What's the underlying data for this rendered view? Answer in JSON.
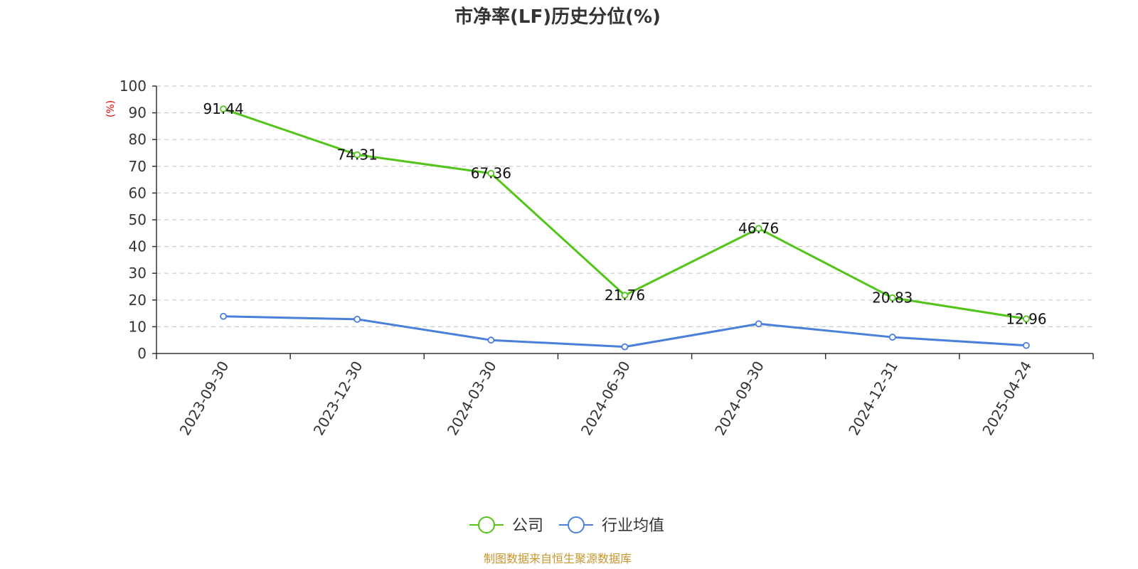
{
  "chart_data": {
    "type": "line",
    "title": "市净率(LF)历史分位(%)",
    "y_unit": "(%)",
    "categories": [
      "2023-09-30",
      "2023-12-30",
      "2024-03-30",
      "2024-06-30",
      "2024-09-30",
      "2024-12-31",
      "2025-04-24"
    ],
    "ylim": [
      0,
      100
    ],
    "yticks": [
      0,
      10,
      20,
      30,
      40,
      50,
      60,
      70,
      80,
      90,
      100
    ],
    "grid": true,
    "legend_position": "bottom-center",
    "series": [
      {
        "name": "公司",
        "color": "#52c41a",
        "values": [
          91.44,
          74.31,
          67.36,
          21.76,
          46.76,
          20.83,
          12.96
        ],
        "labels": [
          "91.44",
          "74.31",
          "67.36",
          "21.76",
          "46.76",
          "20.83",
          "12.96"
        ]
      },
      {
        "name": "行业均值",
        "color": "#4a7fdc",
        "values": [
          13.9,
          12.8,
          5.0,
          2.5,
          11.1,
          6.1,
          3.0
        ]
      }
    ]
  },
  "source": "制图数据来自恒生聚源数据库"
}
